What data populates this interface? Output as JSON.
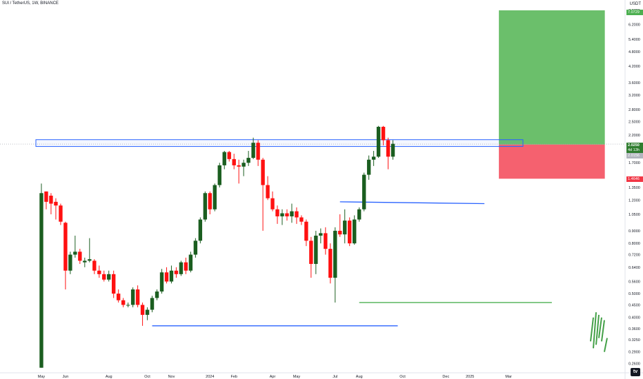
{
  "header": {
    "title": "SUI / TetherUS, 1W, BINANCE",
    "unit": "USDT"
  },
  "price_tags": {
    "target": "7.0729",
    "current": "2.0250",
    "countdown": "4d 13h",
    "entry": "2.0156",
    "stop": "1.4646"
  },
  "chart_data": {
    "type": "candlestick",
    "yscale": "log",
    "ylim": [
      0.24,
      7.4
    ],
    "yticks": [
      "7.0729",
      "6.2000",
      "5.4000",
      "4.8000",
      "4.2000",
      "3.6000",
      "3.2000",
      "2.8000",
      "2.5000",
      "2.2000",
      "2.0250",
      "1.7000",
      "1.4646",
      "1.3500",
      "1.2000",
      "1.0500",
      "0.9000",
      "0.8000",
      "0.7200",
      "0.6400",
      "0.5600",
      "0.5000",
      "0.4500",
      "0.4000",
      "0.3600",
      "0.3250",
      "0.2900",
      "0.2600"
    ],
    "xticks": [
      {
        "label": "May",
        "col": 0
      },
      {
        "label": "Jun",
        "col": 5
      },
      {
        "label": "Aug",
        "col": 14
      },
      {
        "label": "Oct",
        "col": 22
      },
      {
        "label": "Nov",
        "col": 27
      },
      {
        "label": "2024",
        "col": 35
      },
      {
        "label": "Feb",
        "col": 40
      },
      {
        "label": "Apr",
        "col": 48
      },
      {
        "label": "May",
        "col": 53
      },
      {
        "label": "Jul",
        "col": 61
      },
      {
        "label": "Aug",
        "col": 66
      },
      {
        "label": "Oct",
        "col": 75
      },
      {
        "label": "Dec",
        "col": 84
      },
      {
        "label": "2025",
        "col": 89
      },
      {
        "label": "Mar",
        "col": 97
      }
    ],
    "candles": [
      {
        "o": 0.25,
        "h": 1.4,
        "l": 0.25,
        "c": 1.28
      },
      {
        "o": 1.3,
        "h": 1.3,
        "l": 1.1,
        "c": 1.18
      },
      {
        "o": 1.25,
        "h": 1.28,
        "l": 1.05,
        "c": 1.16
      },
      {
        "o": 1.18,
        "h": 1.22,
        "l": 1.0,
        "c": 1.14
      },
      {
        "o": 1.14,
        "h": 1.16,
        "l": 0.95,
        "c": 0.98
      },
      {
        "o": 0.97,
        "h": 0.98,
        "l": 0.52,
        "c": 0.62
      },
      {
        "o": 0.62,
        "h": 0.74,
        "l": 0.6,
        "c": 0.72
      },
      {
        "o": 0.72,
        "h": 0.86,
        "l": 0.7,
        "c": 0.74
      },
      {
        "o": 0.74,
        "h": 0.76,
        "l": 0.66,
        "c": 0.68
      },
      {
        "o": 0.67,
        "h": 0.7,
        "l": 0.64,
        "c": 0.68
      },
      {
        "o": 0.68,
        "h": 0.84,
        "l": 0.67,
        "c": 0.69
      },
      {
        "o": 0.68,
        "h": 0.69,
        "l": 0.6,
        "c": 0.62
      },
      {
        "o": 0.62,
        "h": 0.65,
        "l": 0.58,
        "c": 0.6
      },
      {
        "o": 0.6,
        "h": 0.62,
        "l": 0.56,
        "c": 0.57
      },
      {
        "o": 0.57,
        "h": 0.62,
        "l": 0.56,
        "c": 0.6
      },
      {
        "o": 0.6,
        "h": 0.62,
        "l": 0.48,
        "c": 0.5
      },
      {
        "o": 0.5,
        "h": 0.52,
        "l": 0.46,
        "c": 0.47
      },
      {
        "o": 0.47,
        "h": 0.48,
        "l": 0.44,
        "c": 0.45
      },
      {
        "o": 0.45,
        "h": 0.46,
        "l": 0.44,
        "c": 0.45
      },
      {
        "o": 0.45,
        "h": 0.53,
        "l": 0.44,
        "c": 0.52
      },
      {
        "o": 0.52,
        "h": 0.54,
        "l": 0.44,
        "c": 0.45
      },
      {
        "o": 0.45,
        "h": 0.46,
        "l": 0.37,
        "c": 0.41
      },
      {
        "o": 0.41,
        "h": 0.44,
        "l": 0.39,
        "c": 0.43
      },
      {
        "o": 0.43,
        "h": 0.49,
        "l": 0.42,
        "c": 0.48
      },
      {
        "o": 0.48,
        "h": 0.52,
        "l": 0.47,
        "c": 0.51
      },
      {
        "o": 0.51,
        "h": 0.63,
        "l": 0.5,
        "c": 0.61
      },
      {
        "o": 0.61,
        "h": 0.64,
        "l": 0.55,
        "c": 0.56
      },
      {
        "o": 0.56,
        "h": 0.65,
        "l": 0.55,
        "c": 0.62
      },
      {
        "o": 0.62,
        "h": 0.64,
        "l": 0.58,
        "c": 0.6
      },
      {
        "o": 0.6,
        "h": 0.68,
        "l": 0.59,
        "c": 0.67
      },
      {
        "o": 0.67,
        "h": 0.7,
        "l": 0.6,
        "c": 0.62
      },
      {
        "o": 0.62,
        "h": 0.74,
        "l": 0.61,
        "c": 0.72
      },
      {
        "o": 0.72,
        "h": 0.84,
        "l": 0.7,
        "c": 0.82
      },
      {
        "o": 0.82,
        "h": 1.02,
        "l": 0.8,
        "c": 1.0
      },
      {
        "o": 1.0,
        "h": 1.3,
        "l": 0.98,
        "c": 1.28
      },
      {
        "o": 1.28,
        "h": 1.3,
        "l": 1.05,
        "c": 1.1
      },
      {
        "o": 1.1,
        "h": 1.4,
        "l": 1.08,
        "c": 1.38
      },
      {
        "o": 1.38,
        "h": 1.7,
        "l": 1.35,
        "c": 1.66
      },
      {
        "o": 1.66,
        "h": 1.9,
        "l": 1.6,
        "c": 1.88
      },
      {
        "o": 1.88,
        "h": 1.9,
        "l": 1.72,
        "c": 1.76
      },
      {
        "o": 1.76,
        "h": 1.85,
        "l": 1.6,
        "c": 1.66
      },
      {
        "o": 1.66,
        "h": 1.75,
        "l": 1.4,
        "c": 1.64
      },
      {
        "o": 1.64,
        "h": 1.75,
        "l": 1.5,
        "c": 1.7
      },
      {
        "o": 1.7,
        "h": 1.9,
        "l": 1.65,
        "c": 1.78
      },
      {
        "o": 1.78,
        "h": 2.15,
        "l": 1.76,
        "c": 2.05
      },
      {
        "o": 2.05,
        "h": 2.1,
        "l": 1.65,
        "c": 1.75
      },
      {
        "o": 1.75,
        "h": 1.78,
        "l": 0.9,
        "c": 1.38
      },
      {
        "o": 1.38,
        "h": 1.5,
        "l": 1.2,
        "c": 1.22
      },
      {
        "o": 1.22,
        "h": 1.3,
        "l": 1.08,
        "c": 1.1
      },
      {
        "o": 1.1,
        "h": 1.14,
        "l": 0.96,
        "c": 1.03
      },
      {
        "o": 1.03,
        "h": 1.1,
        "l": 0.95,
        "c": 1.06
      },
      {
        "o": 1.06,
        "h": 1.1,
        "l": 0.99,
        "c": 1.03
      },
      {
        "o": 1.03,
        "h": 1.16,
        "l": 0.97,
        "c": 1.08
      },
      {
        "o": 1.08,
        "h": 1.12,
        "l": 0.96,
        "c": 1.02
      },
      {
        "o": 1.02,
        "h": 1.04,
        "l": 0.95,
        "c": 0.98
      },
      {
        "o": 0.98,
        "h": 1.0,
        "l": 0.78,
        "c": 0.82
      },
      {
        "o": 0.82,
        "h": 0.85,
        "l": 0.58,
        "c": 0.66
      },
      {
        "o": 0.66,
        "h": 0.9,
        "l": 0.6,
        "c": 0.86
      },
      {
        "o": 0.86,
        "h": 0.92,
        "l": 0.8,
        "c": 0.88
      },
      {
        "o": 0.88,
        "h": 0.93,
        "l": 0.72,
        "c": 0.76
      },
      {
        "o": 0.76,
        "h": 0.8,
        "l": 0.55,
        "c": 0.58
      },
      {
        "o": 0.58,
        "h": 0.93,
        "l": 0.46,
        "c": 0.9
      },
      {
        "o": 0.9,
        "h": 1.05,
        "l": 0.85,
        "c": 0.87
      },
      {
        "o": 0.87,
        "h": 1.1,
        "l": 0.8,
        "c": 0.99
      },
      {
        "o": 0.99,
        "h": 1.02,
        "l": 0.78,
        "c": 0.8
      },
      {
        "o": 0.8,
        "h": 1.04,
        "l": 0.79,
        "c": 1.0
      },
      {
        "o": 1.0,
        "h": 1.12,
        "l": 0.98,
        "c": 1.1
      },
      {
        "o": 1.1,
        "h": 1.55,
        "l": 1.08,
        "c": 1.52
      },
      {
        "o": 1.52,
        "h": 1.82,
        "l": 1.45,
        "c": 1.75
      },
      {
        "o": 1.75,
        "h": 1.9,
        "l": 1.65,
        "c": 1.8
      },
      {
        "o": 1.8,
        "h": 2.4,
        "l": 1.78,
        "c": 2.38
      },
      {
        "o": 2.38,
        "h": 2.4,
        "l": 2.0,
        "c": 2.1
      },
      {
        "o": 2.1,
        "h": 2.15,
        "l": 1.6,
        "c": 1.8
      },
      {
        "o": 1.8,
        "h": 2.1,
        "l": 1.75,
        "c": 2.03
      }
    ],
    "levels": [
      {
        "name": "resistance-zone",
        "type": "zone",
        "from": 1.98,
        "to": 2.11,
        "color": "#2962ff",
        "x0": 0,
        "x1": 100
      },
      {
        "name": "mid-trendline",
        "type": "line",
        "y0": 1.18,
        "y1": 1.16,
        "x0": 62,
        "x1": 92,
        "color": "#2962ff"
      },
      {
        "name": "support-line",
        "type": "line",
        "y0": 0.37,
        "y1": 0.37,
        "x0": 23,
        "x1": 74,
        "color": "#2962ff"
      },
      {
        "name": "august-low-line",
        "type": "line",
        "y0": 0.46,
        "y1": 0.46,
        "x0": 66,
        "x1": 106,
        "color": "#4caf50"
      }
    ],
    "position": {
      "type": "long",
      "entry": 2.0156,
      "target": 7.0729,
      "stop": 1.4646,
      "profit_color": "#6bbf6b",
      "loss_color": "#f5616f"
    },
    "colors": {
      "up": "#1b5e20",
      "down": "#ff1111"
    }
  }
}
